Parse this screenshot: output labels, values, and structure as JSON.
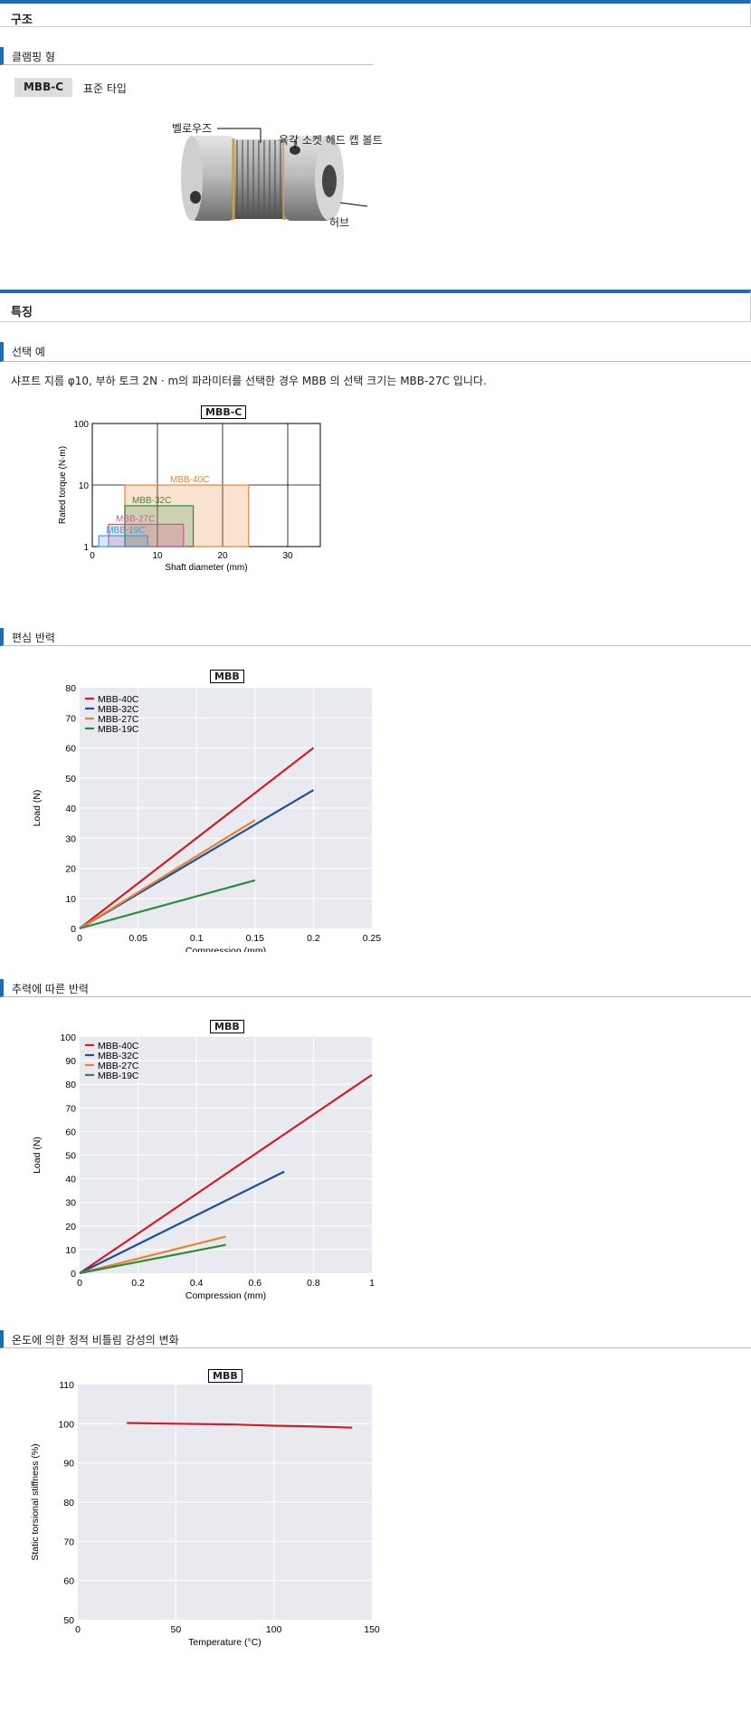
{
  "structure": {
    "section_title": "구조",
    "subsection_title": "클램핑 형",
    "model_badge": "MBB-C",
    "model_desc": "표준 타입",
    "callouts": {
      "bellows": "벨로우즈",
      "bolt": "육각 소켓 헤드 캡 볼트",
      "hub": "허브"
    }
  },
  "features": {
    "section_title": "특징",
    "selection": {
      "title": "선택 예",
      "text": "샤프트 지름 φ10, 부하 토크 2N · m의 파라미터를 선택한 경우 MBB 의 선택 크기는 MBB-27C 입니다."
    },
    "eccentric": {
      "title": "편심 반력"
    },
    "axial": {
      "title": "추력에 따른 반력"
    },
    "temperature": {
      "title": "온도에 의한 정적 비틀림 강성의 변화"
    }
  },
  "colors": {
    "accent": "#1a6fb8",
    "red": "#cc1f27",
    "blue": "#1f4e9b",
    "orange": "#e8822e",
    "green": "#2e8b3e",
    "pink": "#d94f9a",
    "cyan": "#3aa0d8"
  },
  "chart_data": [
    {
      "type": "area",
      "title": "MBB-C",
      "xlabel": "Shaft diameter (mm)",
      "ylabel": "Rated torque  (N·m)",
      "x_ticks": [
        "0",
        "10",
        "20",
        "30"
      ],
      "y_ticks": [
        "1",
        "10",
        "100"
      ],
      "xlim": [
        0,
        35
      ],
      "ylim": [
        1,
        100
      ],
      "y_scale": "log",
      "grid": true,
      "regions": [
        {
          "name": "MBB-40C",
          "x": [
            5,
            24
          ],
          "y": [
            1,
            10
          ],
          "color": "#e8822e"
        },
        {
          "name": "MBB-32C",
          "x": [
            5,
            15.5
          ],
          "y": [
            1,
            4.6
          ],
          "color": "#2e8b3e"
        },
        {
          "name": "MBB-27C",
          "x": [
            2.5,
            14
          ],
          "y": [
            1,
            2.3
          ],
          "color": "#d94f9a"
        },
        {
          "name": "MBB-19C",
          "x": [
            1,
            8.5
          ],
          "y": [
            1,
            1.5
          ],
          "color": "#3aa0d8"
        }
      ]
    },
    {
      "type": "line",
      "title": "MBB",
      "xlabel": "Compression (mm)",
      "ylabel": "Load (N)",
      "x_ticks": [
        "0",
        "0.05",
        "0.1",
        "0.15",
        "0.2",
        "0.25"
      ],
      "y_ticks": [
        "0",
        "10",
        "20",
        "30",
        "40",
        "50",
        "60",
        "70",
        "80"
      ],
      "xlim": [
        0,
        0.25
      ],
      "ylim": [
        0,
        80
      ],
      "grid": true,
      "legend": "top-left",
      "series": [
        {
          "name": "MBB-40C",
          "x": [
            0,
            0.2
          ],
          "y": [
            0,
            60
          ],
          "color": "#cc1f27"
        },
        {
          "name": "MBB-32C",
          "x": [
            0,
            0.2
          ],
          "y": [
            0,
            46
          ],
          "color": "#1f4e9b"
        },
        {
          "name": "MBB-27C",
          "x": [
            0,
            0.15
          ],
          "y": [
            0,
            36
          ],
          "color": "#e8822e"
        },
        {
          "name": "MBB-19C",
          "x": [
            0,
            0.15
          ],
          "y": [
            0,
            16
          ],
          "color": "#2e8b3e"
        }
      ]
    },
    {
      "type": "line",
      "title": "MBB",
      "xlabel": "Compression (mm)",
      "ylabel": "Load (N)",
      "x_ticks": [
        "0",
        "0.2",
        "0.4",
        "0.6",
        "0.8",
        "1"
      ],
      "y_ticks": [
        "0",
        "10",
        "20",
        "30",
        "40",
        "50",
        "60",
        "70",
        "80",
        "90",
        "100"
      ],
      "xlim": [
        0,
        1
      ],
      "ylim": [
        0,
        100
      ],
      "grid": true,
      "legend": "top-left",
      "series": [
        {
          "name": "MBB-40C",
          "x": [
            0,
            1
          ],
          "y": [
            0,
            84
          ],
          "color": "#cc1f27"
        },
        {
          "name": "MBB-32C",
          "x": [
            0,
            0.7
          ],
          "y": [
            0,
            43
          ],
          "color": "#1f4e9b"
        },
        {
          "name": "MBB-27C",
          "x": [
            0,
            0.5
          ],
          "y": [
            0,
            15.5
          ],
          "color": "#e8822e"
        },
        {
          "name": "MBB-19C",
          "x": [
            0,
            0.5
          ],
          "y": [
            0,
            12
          ],
          "color": "#2e8b3e"
        }
      ]
    },
    {
      "type": "line",
      "title": "MBB",
      "xlabel": "Temperature (°C)",
      "ylabel": "Static torsional stiffness (%)",
      "x_ticks": [
        "0",
        "50",
        "100",
        "150"
      ],
      "y_ticks": [
        "50",
        "60",
        "70",
        "80",
        "90",
        "100",
        "110"
      ],
      "xlim": [
        0,
        150
      ],
      "ylim": [
        50,
        110
      ],
      "grid": true,
      "series": [
        {
          "x": [
            25,
            50,
            80,
            100,
            120,
            140
          ],
          "y": [
            100.2,
            100,
            99.8,
            99.5,
            99.3,
            99
          ],
          "color": "#cc1f27"
        }
      ]
    }
  ]
}
